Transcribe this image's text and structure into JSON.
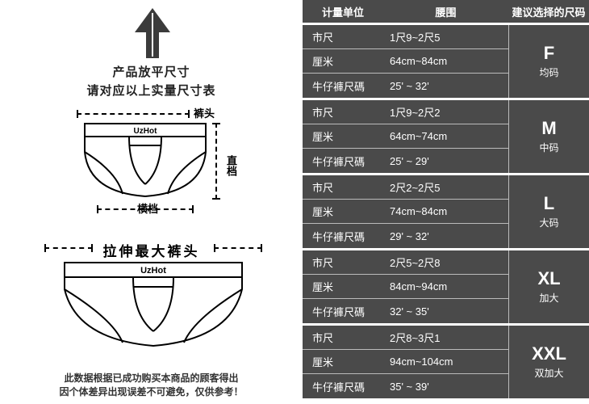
{
  "left": {
    "top_line1": "产品放平尺寸",
    "top_line2": "请对应以上实量尺寸表",
    "labels": {
      "kutou": "裤头",
      "zhidang": "直档",
      "hengdang": "横档"
    },
    "brand": "UzHot",
    "stretch_title": "拉伸最大裤头",
    "disclaimer_l1": "此数据根据已成功购买本商品的顾客得出",
    "disclaimer_l2": "因个体差异出现误差不可避免，仅供参考！"
  },
  "header": {
    "unit": "计量单位",
    "waist": "腰围",
    "sugg": "建议选择的尺码"
  },
  "row_labels": {
    "shichi": "市尺",
    "limi": "厘米",
    "niuzai": "牛仔褲尺碼"
  },
  "sizes": [
    {
      "code": "F",
      "desc": "均码",
      "shichi": "1尺9~2尺5",
      "cm": "64cm~84cm",
      "jeans": "25'  ~  32'"
    },
    {
      "code": "M",
      "desc": "中码",
      "shichi": "1尺9~2尺2",
      "cm": "64cm~74cm",
      "jeans": "25'  ~  29'"
    },
    {
      "code": "L",
      "desc": "大码",
      "shichi": "2尺2~2尺5",
      "cm": "74cm~84cm",
      "jeans": "29'  ~  32'"
    },
    {
      "code": "XL",
      "desc": "加大",
      "shichi": "2尺5~2尺8",
      "cm": "84cm~94cm",
      "jeans": "32'  ~  35'"
    },
    {
      "code": "XXL",
      "desc": "双加大",
      "shichi": "2尺8~3尺1",
      "cm": "94cm~104cm",
      "jeans": "35'  ~  39'"
    }
  ],
  "style": {
    "table_bg": "#4a4a4a",
    "table_fg": "#ffffff",
    "divider": "#bbbbbb",
    "text": "#222222"
  }
}
